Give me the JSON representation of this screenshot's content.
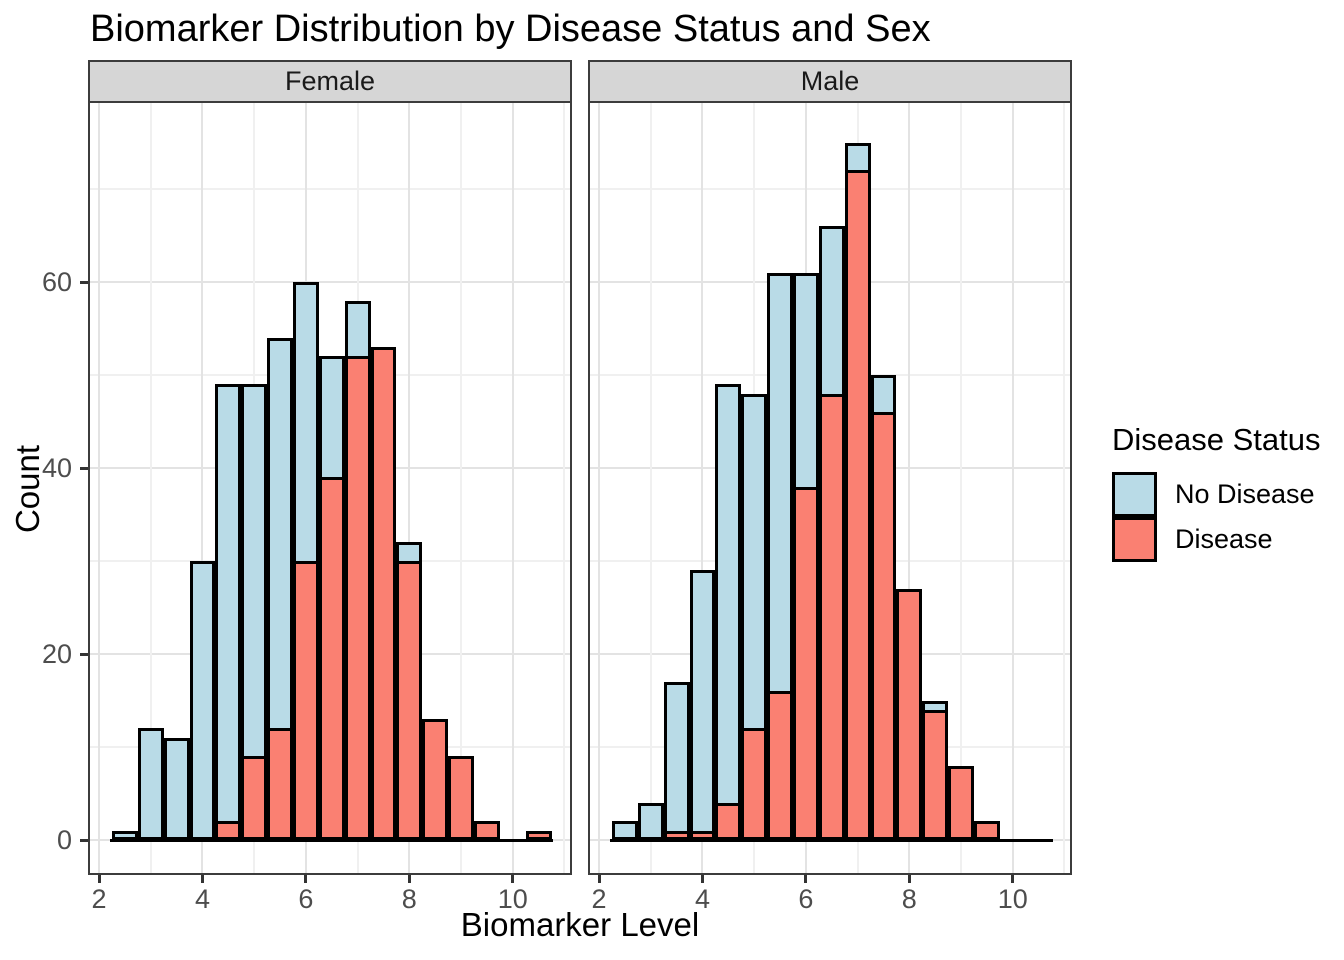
{
  "title": "Biomarker Distribution by Disease Status and Sex",
  "x_axis": {
    "title": "Biomarker Level"
  },
  "y_axis": {
    "title": "Count"
  },
  "legend": {
    "title": "Disease Status",
    "items": [
      {
        "label": "No Disease",
        "color": "#b9dbe7"
      },
      {
        "label": "Disease",
        "color": "#fa8072"
      }
    ]
  },
  "chart_data": {
    "type": "bar",
    "subtype": "overlaid-histogram-faceted",
    "title": "Biomarker Distribution by Disease Status and Sex",
    "xlabel": "Biomarker Level",
    "ylabel": "Count",
    "bin_start": 2.25,
    "bin_width": 0.5,
    "x_range": [
      1.825,
      11.175
    ],
    "y_range": [
      -3.75,
      78.75
    ],
    "x_major_ticks": [
      2,
      4,
      6,
      8,
      10
    ],
    "x_minor_gridlines": [
      3,
      5,
      7,
      9,
      11
    ],
    "y_major_ticks": [
      0,
      20,
      40,
      60
    ],
    "y_minor_gridlines": [
      10,
      30,
      50,
      70
    ],
    "grid": "on",
    "legend_position": "right",
    "facets": [
      {
        "id": "female",
        "label": "Female",
        "series": [
          {
            "name": "No Disease",
            "color": "#b9dbe7",
            "values": [
              1,
              12,
              11,
              30,
              49,
              49,
              54,
              60,
              52,
              58,
              0,
              32,
              0,
              0,
              0,
              0,
              0
            ]
          },
          {
            "name": "Disease",
            "color": "#fa8072",
            "values": [
              0,
              0,
              0,
              0,
              2,
              9,
              12,
              30,
              39,
              52,
              53,
              30,
              13,
              9,
              2,
              0,
              1
            ]
          }
        ]
      },
      {
        "id": "male",
        "label": "Male",
        "series": [
          {
            "name": "No Disease",
            "color": "#b9dbe7",
            "values": [
              2,
              4,
              17,
              29,
              49,
              48,
              61,
              61,
              66,
              75,
              50,
              0,
              15,
              0,
              0,
              0,
              0
            ]
          },
          {
            "name": "Disease",
            "color": "#fa8072",
            "values": [
              0,
              0,
              1,
              1,
              4,
              12,
              16,
              38,
              48,
              72,
              46,
              27,
              14,
              8,
              2,
              0,
              0
            ]
          }
        ]
      }
    ]
  }
}
